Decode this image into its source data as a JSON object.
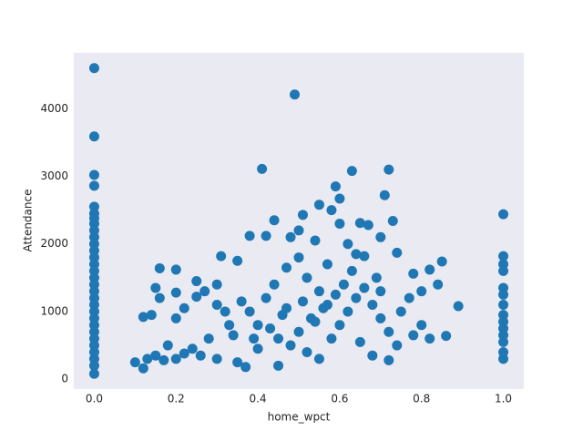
{
  "chart_data": {
    "type": "scatter",
    "xlabel": "home_wpct",
    "ylabel": "Attendance",
    "color": "#1f77b4",
    "grid": false,
    "xlim": [
      -0.05,
      1.05
    ],
    "ylim": [
      -146,
      4826
    ],
    "xticks": [
      {
        "value": 0,
        "label": "0.0"
      },
      {
        "value": 0.2,
        "label": "0.2"
      },
      {
        "value": 0.4,
        "label": "0.4"
      },
      {
        "value": 0.6,
        "label": "0.6"
      },
      {
        "value": 0.8,
        "label": "0.8"
      },
      {
        "value": 1,
        "label": "1.0"
      }
    ],
    "yticks": [
      0,
      1000,
      2000,
      3000,
      4000
    ],
    "x": [
      0,
      0,
      0,
      0,
      0,
      0,
      0,
      0,
      0,
      0,
      0,
      0,
      0,
      0,
      0,
      0,
      0,
      0,
      0,
      0,
      0,
      0,
      0,
      0,
      0,
      0,
      0,
      0,
      0,
      0,
      1,
      1,
      1,
      1,
      1,
      1,
      1,
      1,
      1,
      1,
      1,
      1,
      1,
      1,
      0.49,
      0.41,
      0.63,
      0.72,
      0.59,
      0.6,
      0.71,
      0.55,
      0.58,
      0.51,
      0.44,
      0.73,
      0.65,
      0.6,
      0.67,
      0.5,
      0.38,
      0.42,
      0.48,
      0.54,
      0.7,
      0.62,
      0.74,
      0.66,
      0.31,
      0.35,
      0.85,
      0.82,
      0.78,
      0.16,
      0.2,
      0.89,
      0.86,
      0.1,
      0.12,
      0.13,
      0.15,
      0.17,
      0.12,
      0.14,
      0.16,
      0.15,
      0.2,
      0.2,
      0.22,
      0.25,
      0.25,
      0.27,
      0.3,
      0.3,
      0.32,
      0.33,
      0.28,
      0.24,
      0.22,
      0.2,
      0.18,
      0.26,
      0.3,
      0.35,
      0.37,
      0.4,
      0.45,
      0.45,
      0.4,
      0.38,
      0.42,
      0.36,
      0.44,
      0.47,
      0.5,
      0.52,
      0.55,
      0.57,
      0.53,
      0.5,
      0.48,
      0.52,
      0.55,
      0.58,
      0.6,
      0.62,
      0.64,
      0.61,
      0.63,
      0.66,
      0.68,
      0.7,
      0.72,
      0.74,
      0.72,
      0.68,
      0.65,
      0.75,
      0.77,
      0.8,
      0.8,
      0.82,
      0.78,
      0.84,
      0.7,
      0.46,
      0.43,
      0.39,
      0.34,
      0.56,
      0.59,
      0.51,
      0.47,
      0.57,
      0.64,
      0.69,
      0.54
    ],
    "y": [
      80,
      4600,
      3590,
      3020,
      2860,
      2550,
      2450,
      2380,
      2300,
      2200,
      2100,
      2000,
      1900,
      1800,
      1700,
      1600,
      1500,
      1400,
      1300,
      1200,
      1100,
      1000,
      900,
      800,
      700,
      600,
      500,
      400,
      300,
      200,
      2440,
      1820,
      1700,
      1600,
      1350,
      1250,
      1100,
      950,
      850,
      750,
      650,
      550,
      400,
      300,
      4210,
      3110,
      3080,
      3100,
      2850,
      2670,
      2720,
      2580,
      2500,
      2430,
      2350,
      2340,
      2310,
      2300,
      2280,
      2200,
      2120,
      2120,
      2100,
      2050,
      2100,
      2000,
      1870,
      1820,
      1820,
      1750,
      1740,
      1620,
      1560,
      1640,
      1620,
      1080,
      640,
      250,
      160,
      300,
      350,
      280,
      920,
      950,
      1200,
      1350,
      1280,
      900,
      1050,
      1220,
      1450,
      1300,
      1400,
      1100,
      1000,
      800,
      600,
      450,
      380,
      300,
      500,
      350,
      300,
      250,
      180,
      450,
      200,
      600,
      800,
      1000,
      1200,
      1150,
      1400,
      1650,
      1800,
      1500,
      1300,
      1100,
      900,
      700,
      500,
      400,
      300,
      600,
      800,
      1000,
      1200,
      1400,
      1600,
      1350,
      1100,
      900,
      700,
      500,
      280,
      350,
      550,
      1000,
      1200,
      1300,
      800,
      600,
      650,
      1400,
      1300,
      950,
      750,
      600,
      650,
      1050,
      1250,
      1150,
      1050,
      1700,
      1850,
      1500,
      850
    ]
  }
}
